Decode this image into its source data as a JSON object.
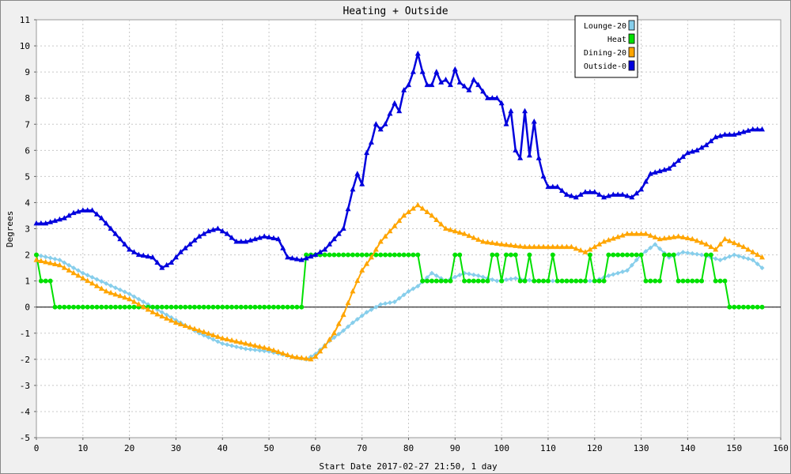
{
  "chart_data": {
    "type": "line",
    "title": "Heating + Outside",
    "xlabel": "Start Date 2017-02-27 21:50, 1 day",
    "ylabel": "Degrees",
    "xlim": [
      0,
      160
    ],
    "ylim": [
      -5,
      11
    ],
    "x_ticks": [
      0,
      10,
      20,
      30,
      40,
      50,
      60,
      70,
      80,
      90,
      100,
      110,
      120,
      130,
      140,
      150,
      160
    ],
    "y_ticks": [
      -5,
      -4,
      -3,
      -2,
      -1,
      0,
      1,
      2,
      3,
      4,
      5,
      6,
      7,
      8,
      9,
      10,
      11
    ],
    "grid": true,
    "legend_position": "top-right",
    "series": [
      {
        "name": "Lounge-20",
        "color": "#87ceeb",
        "marker": "diamond",
        "points": [
          [
            0,
            2.0
          ],
          [
            5,
            1.8
          ],
          [
            10,
            1.3
          ],
          [
            15,
            0.9
          ],
          [
            20,
            0.5
          ],
          [
            25,
            0.0
          ],
          [
            30,
            -0.5
          ],
          [
            35,
            -1.0
          ],
          [
            40,
            -1.4
          ],
          [
            45,
            -1.6
          ],
          [
            50,
            -1.7
          ],
          [
            55,
            -1.9
          ],
          [
            58,
            -2.0
          ],
          [
            60,
            -1.8
          ],
          [
            63,
            -1.3
          ],
          [
            66,
            -0.9
          ],
          [
            68,
            -0.6
          ],
          [
            71,
            -0.2
          ],
          [
            74,
            0.1
          ],
          [
            77,
            0.2
          ],
          [
            80,
            0.6
          ],
          [
            82,
            0.8
          ],
          [
            85,
            1.3
          ],
          [
            88,
            1.0
          ],
          [
            92,
            1.3
          ],
          [
            95,
            1.2
          ],
          [
            99,
            1.0
          ],
          [
            103,
            1.1
          ],
          [
            107,
            1.0
          ],
          [
            111,
            1.0
          ],
          [
            116,
            1.0
          ],
          [
            120,
            1.0
          ],
          [
            123,
            1.2
          ],
          [
            127,
            1.4
          ],
          [
            130,
            2.0
          ],
          [
            133,
            2.4
          ],
          [
            136,
            1.9
          ],
          [
            139,
            2.1
          ],
          [
            143,
            2.0
          ],
          [
            147,
            1.8
          ],
          [
            150,
            2.0
          ],
          [
            154,
            1.8
          ],
          [
            156,
            1.5
          ]
        ]
      },
      {
        "name": "Heat",
        "color": "#00e000",
        "marker": "circle",
        "points": [
          [
            0,
            2
          ],
          [
            1,
            1
          ],
          [
            3,
            1
          ],
          [
            4,
            0
          ],
          [
            57,
            0
          ],
          [
            58,
            2
          ],
          [
            82,
            2
          ],
          [
            83,
            1
          ],
          [
            89,
            1
          ],
          [
            90,
            2
          ],
          [
            91,
            2
          ],
          [
            92,
            1
          ],
          [
            97,
            1
          ],
          [
            98,
            2
          ],
          [
            99,
            2
          ],
          [
            100,
            1
          ],
          [
            101,
            2
          ],
          [
            103,
            2
          ],
          [
            104,
            1
          ],
          [
            105,
            1
          ],
          [
            106,
            2
          ],
          [
            107,
            1
          ],
          [
            110,
            1
          ],
          [
            111,
            2
          ],
          [
            112,
            1
          ],
          [
            118,
            1
          ],
          [
            119,
            2
          ],
          [
            120,
            1
          ],
          [
            122,
            1
          ],
          [
            123,
            2
          ],
          [
            130,
            2
          ],
          [
            131,
            1
          ],
          [
            134,
            1
          ],
          [
            135,
            2
          ],
          [
            137,
            2
          ],
          [
            138,
            1
          ],
          [
            143,
            1
          ],
          [
            144,
            2
          ],
          [
            145,
            2
          ],
          [
            146,
            1
          ],
          [
            148,
            1
          ],
          [
            149,
            0
          ],
          [
            156,
            0
          ]
        ]
      },
      {
        "name": "Dining-20",
        "color": "#ffa500",
        "marker": "triangle",
        "points": [
          [
            0,
            1.8
          ],
          [
            5,
            1.6
          ],
          [
            10,
            1.1
          ],
          [
            15,
            0.6
          ],
          [
            20,
            0.3
          ],
          [
            25,
            -0.2
          ],
          [
            30,
            -0.6
          ],
          [
            35,
            -0.9
          ],
          [
            40,
            -1.2
          ],
          [
            45,
            -1.4
          ],
          [
            50,
            -1.6
          ],
          [
            55,
            -1.9
          ],
          [
            59,
            -2.0
          ],
          [
            60,
            -1.9
          ],
          [
            62,
            -1.5
          ],
          [
            64,
            -1.0
          ],
          [
            66,
            -0.3
          ],
          [
            68,
            0.6
          ],
          [
            70,
            1.4
          ],
          [
            72,
            1.9
          ],
          [
            74,
            2.5
          ],
          [
            76,
            2.9
          ],
          [
            79,
            3.5
          ],
          [
            82,
            3.9
          ],
          [
            85,
            3.5
          ],
          [
            88,
            3.0
          ],
          [
            92,
            2.8
          ],
          [
            96,
            2.5
          ],
          [
            100,
            2.4
          ],
          [
            105,
            2.3
          ],
          [
            110,
            2.3
          ],
          [
            115,
            2.3
          ],
          [
            118,
            2.1
          ],
          [
            122,
            2.5
          ],
          [
            127,
            2.8
          ],
          [
            131,
            2.8
          ],
          [
            134,
            2.6
          ],
          [
            138,
            2.7
          ],
          [
            141,
            2.6
          ],
          [
            144,
            2.4
          ],
          [
            146,
            2.2
          ],
          [
            148,
            2.6
          ],
          [
            152,
            2.3
          ],
          [
            156,
            1.9
          ]
        ]
      },
      {
        "name": "Outside-0",
        "color": "#0000dd",
        "marker": "triangle",
        "points": [
          [
            0,
            3.2
          ],
          [
            2,
            3.2
          ],
          [
            4,
            3.3
          ],
          [
            6,
            3.4
          ],
          [
            8,
            3.6
          ],
          [
            10,
            3.7
          ],
          [
            12,
            3.7
          ],
          [
            14,
            3.4
          ],
          [
            16,
            3.0
          ],
          [
            18,
            2.6
          ],
          [
            20,
            2.2
          ],
          [
            22,
            2.0
          ],
          [
            25,
            1.9
          ],
          [
            27,
            1.5
          ],
          [
            29,
            1.7
          ],
          [
            31,
            2.1
          ],
          [
            33,
            2.4
          ],
          [
            35,
            2.7
          ],
          [
            37,
            2.9
          ],
          [
            39,
            3.0
          ],
          [
            41,
            2.8
          ],
          [
            43,
            2.5
          ],
          [
            45,
            2.5
          ],
          [
            47,
            2.6
          ],
          [
            49,
            2.7
          ],
          [
            52,
            2.6
          ],
          [
            54,
            1.9
          ],
          [
            57,
            1.8
          ],
          [
            60,
            2.0
          ],
          [
            62,
            2.2
          ],
          [
            64,
            2.6
          ],
          [
            66,
            3.0
          ],
          [
            68,
            4.5
          ],
          [
            69,
            5.1
          ],
          [
            70,
            4.7
          ],
          [
            71,
            5.9
          ],
          [
            72,
            6.3
          ],
          [
            73,
            7.0
          ],
          [
            74,
            6.8
          ],
          [
            75,
            7.0
          ],
          [
            77,
            7.8
          ],
          [
            78,
            7.5
          ],
          [
            79,
            8.3
          ],
          [
            80,
            8.5
          ],
          [
            81,
            9.0
          ],
          [
            82,
            9.7
          ],
          [
            83,
            9.0
          ],
          [
            84,
            8.5
          ],
          [
            85,
            8.5
          ],
          [
            86,
            9.0
          ],
          [
            87,
            8.6
          ],
          [
            88,
            8.7
          ],
          [
            89,
            8.5
          ],
          [
            90,
            9.1
          ],
          [
            91,
            8.6
          ],
          [
            93,
            8.3
          ],
          [
            94,
            8.7
          ],
          [
            95,
            8.5
          ],
          [
            97,
            8.0
          ],
          [
            99,
            8.0
          ],
          [
            100,
            7.8
          ],
          [
            101,
            7.0
          ],
          [
            102,
            7.5
          ],
          [
            103,
            6.0
          ],
          [
            104,
            5.7
          ],
          [
            105,
            7.5
          ],
          [
            106,
            5.8
          ],
          [
            107,
            7.1
          ],
          [
            108,
            5.7
          ],
          [
            109,
            5.0
          ],
          [
            110,
            4.6
          ],
          [
            112,
            4.6
          ],
          [
            114,
            4.3
          ],
          [
            116,
            4.2
          ],
          [
            118,
            4.4
          ],
          [
            120,
            4.4
          ],
          [
            122,
            4.2
          ],
          [
            124,
            4.3
          ],
          [
            126,
            4.3
          ],
          [
            128,
            4.2
          ],
          [
            130,
            4.5
          ],
          [
            132,
            5.1
          ],
          [
            134,
            5.2
          ],
          [
            136,
            5.3
          ],
          [
            138,
            5.6
          ],
          [
            140,
            5.9
          ],
          [
            142,
            6.0
          ],
          [
            144,
            6.2
          ],
          [
            146,
            6.5
          ],
          [
            148,
            6.6
          ],
          [
            150,
            6.6
          ],
          [
            152,
            6.7
          ],
          [
            154,
            6.8
          ],
          [
            156,
            6.8
          ]
        ]
      }
    ]
  }
}
